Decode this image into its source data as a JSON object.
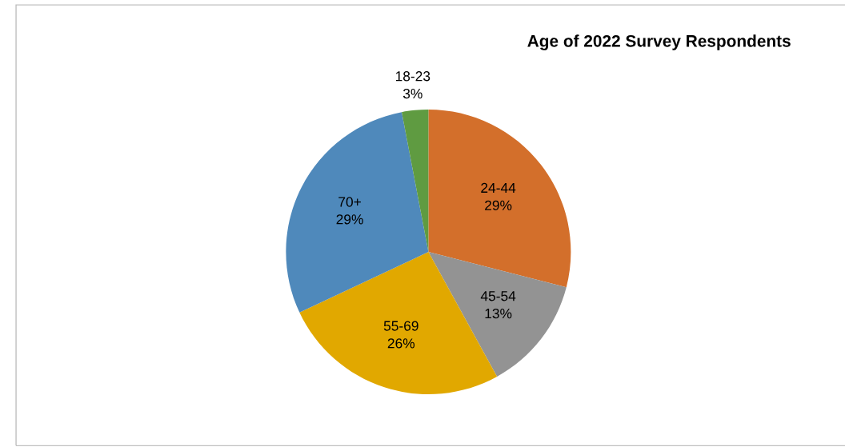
{
  "chart_data": {
    "type": "pie",
    "title": "Age of 2022 Survey Respondents",
    "categories": [
      "24-44",
      "45-54",
      "55-69",
      "70+",
      "18-23"
    ],
    "values": [
      29,
      13,
      26,
      29,
      3
    ],
    "value_labels": [
      "29%",
      "13%",
      "26%",
      "29%",
      "3%"
    ],
    "colors": [
      "#d36f2b",
      "#939393",
      "#e1a800",
      "#4f89bb",
      "#5f9b41"
    ],
    "legend": false
  }
}
